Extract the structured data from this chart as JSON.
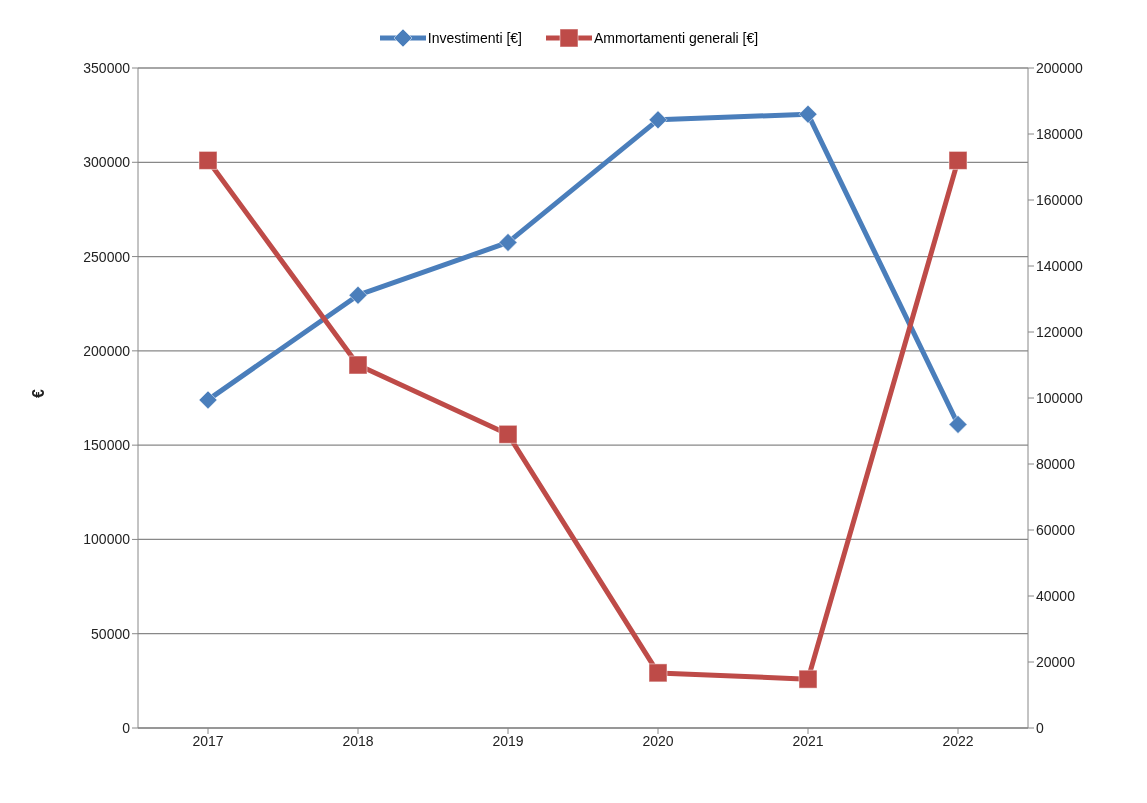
{
  "chart_data": {
    "type": "line",
    "ylabel": "€",
    "categories": [
      "2017",
      "2018",
      "2019",
      "2020",
      "2021",
      "2022"
    ],
    "series": [
      {
        "name": "Investimenti [€]",
        "color": "#4a7ebb",
        "marker": "diamond",
        "values": [
          174000,
          229500,
          257500,
          322500,
          325500,
          161000
        ]
      },
      {
        "name": "Ammortamenti generali [€]",
        "color": "#be4b48",
        "marker": "square",
        "axis": "y2",
        "values": [
          172000,
          110000,
          89000,
          16700,
          14800,
          172000
        ]
      }
    ],
    "ylim": [
      0,
      350000
    ],
    "yticks": [
      0,
      50000,
      100000,
      150000,
      200000,
      250000,
      300000,
      350000
    ],
    "y2lim": [
      0,
      200000
    ],
    "y2ticks": [
      0,
      20000,
      40000,
      60000,
      80000,
      100000,
      120000,
      140000,
      160000,
      180000,
      200000
    ],
    "grid": "y",
    "legend": "top",
    "line_style": "solid"
  }
}
